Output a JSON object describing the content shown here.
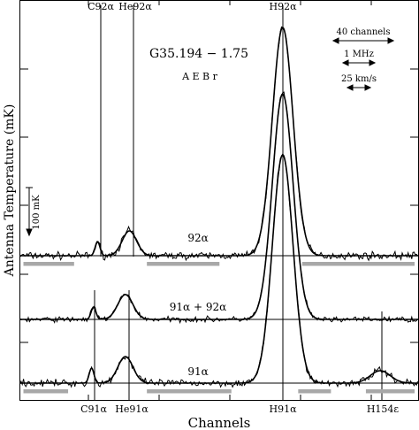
{
  "chart_data": {
    "type": "line",
    "title": "G35.194 − 1.75",
    "subtitle": "A E B r",
    "xlabel": "Channels",
    "ylabel": "Antenna Temperature (mK)",
    "x_range": [
      0,
      1000
    ],
    "top_line_labels": [
      "C92α",
      "He92α",
      "H92α"
    ],
    "bottom_line_labels": [
      "C91α",
      "He91α",
      "H91α",
      "H154ε"
    ],
    "scale_bar_label": "100 mK",
    "scale_legend": [
      "40 channels",
      "1 MHz",
      "25 km/s"
    ],
    "line_markers": [
      {
        "label": "C92α",
        "x": 195
      },
      {
        "label": "He92α",
        "x": 275
      },
      {
        "label": "H92α",
        "x": 660
      },
      {
        "label": "C91α",
        "x": 180
      },
      {
        "label": "He91α",
        "x": 265
      },
      {
        "label": "H91α",
        "x": 660
      },
      {
        "label": "H154ε",
        "x": 905
      }
    ],
    "series": [
      {
        "name": "92α",
        "components": [
          {
            "center": 660,
            "width": 26,
            "peak": 258
          },
          {
            "center": 275,
            "width": 18,
            "peak": 28
          },
          {
            "center": 195,
            "width": 6,
            "peak": 16
          }
        ],
        "noise": 4,
        "windows": [
          [
            0,
            145
          ],
          [
            310,
            510
          ],
          [
            700,
            1000
          ]
        ]
      },
      {
        "name": "91α + 92α",
        "components": [
          {
            "center": 660,
            "width": 26,
            "peak": 255
          },
          {
            "center": 265,
            "width": 19,
            "peak": 28
          },
          {
            "center": 185,
            "width": 6,
            "peak": 14
          }
        ],
        "noise": 3,
        "windows": []
      },
      {
        "name": "91α",
        "components": [
          {
            "center": 660,
            "width": 26,
            "peak": 258
          },
          {
            "center": 265,
            "width": 19,
            "peak": 30
          },
          {
            "center": 180,
            "width": 6,
            "peak": 17
          },
          {
            "center": 905,
            "width": 25,
            "peak": 14
          }
        ],
        "noise": 4,
        "windows": [
          [
            0,
            130
          ],
          [
            310,
            540
          ],
          [
            690,
            790
          ],
          [
            860,
            1000
          ]
        ]
      }
    ]
  }
}
